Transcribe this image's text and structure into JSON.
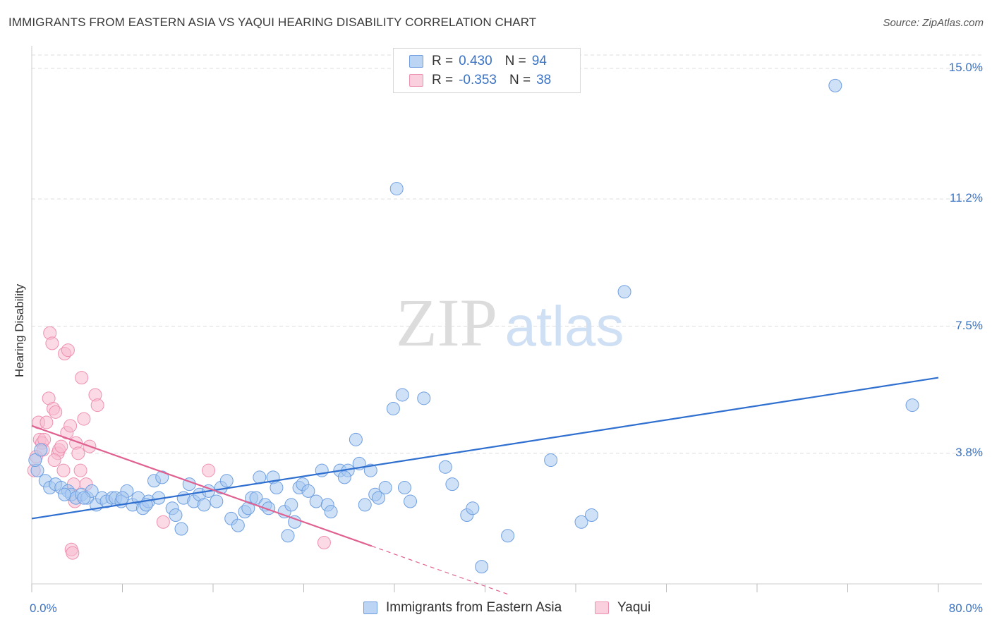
{
  "header": {
    "title": "IMMIGRANTS FROM EASTERN ASIA VS YAQUI HEARING DISABILITY CORRELATION CHART",
    "source": "Source: ZipAtlas.com"
  },
  "watermark": {
    "zip": "ZIP",
    "atlas": "atlas"
  },
  "colors": {
    "blue_fill": "#a8c8f0",
    "blue_stroke": "#6e9ee0",
    "blue_line": "#2f6fcf",
    "pink_fill": "#f8bcd0",
    "pink_stroke": "#ee90b0",
    "pink_line": "#e06090",
    "tick_label": "#3b73c4",
    "grid": "#dddddd"
  },
  "legend": {
    "rows": [
      {
        "r_label": "R =",
        "r_value": "0.430",
        "n_label": "N =",
        "n_value": "94"
      },
      {
        "r_label": "R =",
        "r_value": "-0.353",
        "n_label": "N =",
        "n_value": "38"
      }
    ]
  },
  "chart_data": {
    "type": "scatter",
    "title": "IMMIGRANTS FROM EASTERN ASIA VS YAQUI HEARING DISABILITY CORRELATION CHART",
    "xlabel": "",
    "ylabel": "Hearing Disability",
    "xlim": [
      0,
      80
    ],
    "ylim": [
      0,
      15.7
    ],
    "x_tick_labels": [
      "0.0%",
      "80.0%"
    ],
    "y_ticks": [
      3.8,
      7.5,
      11.2,
      15.0
    ],
    "y_tick_labels": [
      "3.8%",
      "7.5%",
      "11.2%",
      "15.0%"
    ],
    "grid": true,
    "legend_position": "bottom",
    "series": [
      {
        "name": "Immigrants from Eastern Asia",
        "color": "#a8c8f0",
        "trend": {
          "x": [
            0,
            80
          ],
          "y": [
            1.9,
            6.0
          ]
        },
        "points": [
          [
            0.5,
            3.3
          ],
          [
            1.2,
            3.0
          ],
          [
            1.6,
            2.8
          ],
          [
            2.1,
            2.9
          ],
          [
            2.6,
            2.8
          ],
          [
            3.2,
            2.7
          ],
          [
            3.5,
            2.6
          ],
          [
            3.9,
            2.5
          ],
          [
            4.4,
            2.6
          ],
          [
            4.9,
            2.5
          ],
          [
            5.3,
            2.7
          ],
          [
            5.7,
            2.3
          ],
          [
            6.2,
            2.5
          ],
          [
            6.6,
            2.4
          ],
          [
            7.1,
            2.5
          ],
          [
            7.4,
            2.5
          ],
          [
            7.9,
            2.4
          ],
          [
            8.4,
            2.7
          ],
          [
            8.9,
            2.3
          ],
          [
            9.4,
            2.5
          ],
          [
            9.8,
            2.2
          ],
          [
            10.3,
            2.4
          ],
          [
            10.8,
            3.0
          ],
          [
            11.5,
            3.1
          ],
          [
            11.2,
            2.5
          ],
          [
            12.4,
            2.2
          ],
          [
            12.7,
            2.0
          ],
          [
            13.2,
            1.6
          ],
          [
            13.4,
            2.5
          ],
          [
            13.9,
            2.9
          ],
          [
            14.3,
            2.4
          ],
          [
            14.8,
            2.6
          ],
          [
            15.2,
            2.3
          ],
          [
            15.6,
            2.7
          ],
          [
            16.3,
            2.4
          ],
          [
            16.7,
            2.8
          ],
          [
            17.2,
            3.0
          ],
          [
            17.6,
            1.9
          ],
          [
            18.2,
            1.7
          ],
          [
            18.8,
            2.1
          ],
          [
            19.4,
            2.5
          ],
          [
            19.8,
            2.5
          ],
          [
            20.1,
            3.1
          ],
          [
            20.6,
            2.3
          ],
          [
            20.9,
            2.2
          ],
          [
            21.3,
            3.1
          ],
          [
            21.6,
            2.8
          ],
          [
            22.3,
            2.1
          ],
          [
            22.6,
            1.4
          ],
          [
            22.9,
            2.3
          ],
          [
            23.2,
            1.8
          ],
          [
            23.6,
            2.8
          ],
          [
            23.9,
            2.9
          ],
          [
            24.4,
            2.7
          ],
          [
            25.1,
            2.4
          ],
          [
            25.6,
            3.3
          ],
          [
            26.1,
            2.3
          ],
          [
            26.4,
            2.1
          ],
          [
            27.2,
            3.3
          ],
          [
            27.9,
            3.3
          ],
          [
            27.6,
            3.1
          ],
          [
            28.9,
            3.5
          ],
          [
            28.6,
            4.2
          ],
          [
            29.4,
            2.3
          ],
          [
            29.9,
            3.3
          ],
          [
            30.3,
            2.6
          ],
          [
            30.6,
            2.5
          ],
          [
            31.2,
            2.8
          ],
          [
            31.9,
            5.1
          ],
          [
            32.2,
            11.5
          ],
          [
            32.7,
            5.5
          ],
          [
            32.9,
            2.8
          ],
          [
            33.4,
            2.4
          ],
          [
            34.6,
            5.4
          ],
          [
            36.5,
            3.4
          ],
          [
            37.1,
            2.9
          ],
          [
            38.4,
            2.0
          ],
          [
            38.9,
            2.2
          ],
          [
            39.7,
            0.5
          ],
          [
            42.0,
            1.4
          ],
          [
            45.8,
            3.6
          ],
          [
            48.5,
            1.8
          ],
          [
            49.4,
            2.0
          ],
          [
            52.3,
            8.5
          ],
          [
            70.9,
            14.5
          ],
          [
            77.7,
            5.2
          ],
          [
            0.3,
            3.6
          ],
          [
            0.8,
            3.9
          ],
          [
            2.9,
            2.6
          ],
          [
            4.6,
            2.5
          ],
          [
            8.0,
            2.5
          ],
          [
            10.1,
            2.3
          ],
          [
            19.1,
            2.2
          ]
        ]
      },
      {
        "name": "Yaqui",
        "color": "#f8bcd0",
        "trend": {
          "x": [
            0,
            30
          ],
          "y": [
            4.6,
            1.1
          ]
        },
        "trend_ext": {
          "x": [
            30,
            42
          ],
          "y": [
            1.1,
            -0.3
          ]
        },
        "points": [
          [
            0.2,
            3.3
          ],
          [
            0.4,
            3.7
          ],
          [
            0.6,
            4.7
          ],
          [
            0.7,
            4.2
          ],
          [
            0.9,
            4.1
          ],
          [
            1.1,
            4.2
          ],
          [
            1.3,
            4.7
          ],
          [
            1.5,
            5.4
          ],
          [
            1.6,
            7.3
          ],
          [
            1.8,
            7.0
          ],
          [
            1.9,
            5.1
          ],
          [
            2.1,
            5.0
          ],
          [
            2.3,
            3.8
          ],
          [
            2.4,
            3.9
          ],
          [
            2.6,
            4.0
          ],
          [
            2.8,
            3.3
          ],
          [
            2.9,
            6.7
          ],
          [
            3.1,
            4.4
          ],
          [
            3.2,
            6.8
          ],
          [
            3.4,
            4.6
          ],
          [
            3.5,
            1.0
          ],
          [
            3.6,
            0.9
          ],
          [
            3.7,
            2.9
          ],
          [
            3.8,
            2.4
          ],
          [
            3.9,
            4.1
          ],
          [
            4.1,
            3.8
          ],
          [
            4.3,
            3.3
          ],
          [
            4.4,
            6.0
          ],
          [
            4.6,
            4.8
          ],
          [
            4.8,
            2.9
          ],
          [
            5.1,
            4.0
          ],
          [
            5.6,
            5.5
          ],
          [
            5.8,
            5.2
          ],
          [
            11.6,
            1.8
          ],
          [
            15.6,
            3.3
          ],
          [
            25.8,
            1.2
          ],
          [
            1.0,
            3.9
          ],
          [
            2.0,
            3.6
          ]
        ]
      }
    ]
  },
  "bottom_legend": {
    "items": [
      {
        "label": "Immigrants from Eastern Asia"
      },
      {
        "label": "Yaqui"
      }
    ]
  }
}
